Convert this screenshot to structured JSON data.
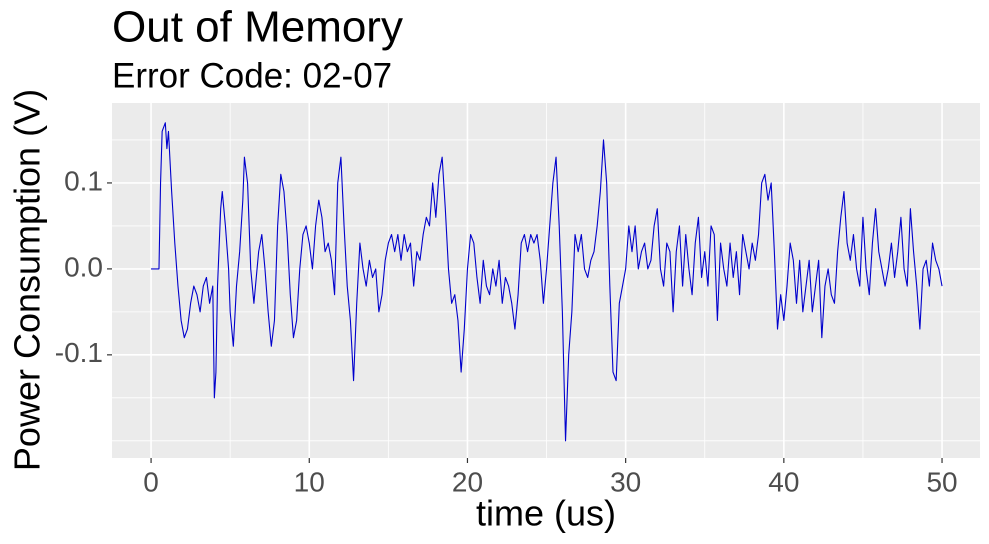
{
  "chart_data": {
    "type": "line",
    "title": "Out of Memory",
    "subtitle": "Error Code: 02-07",
    "xlabel": "time (us)",
    "ylabel": "Power Consumption (V)",
    "color": "#0000cd",
    "grid": true,
    "xlim": [
      -2.47,
      52.4
    ],
    "ylim": [
      -0.22,
      0.193
    ],
    "xticks": [
      0,
      10,
      20,
      30,
      40,
      50
    ],
    "yticks": [
      -0.1,
      {
        "value": 0,
        "label": "0.0"
      },
      0.1
    ],
    "xminor": [
      5,
      15,
      25,
      35,
      45
    ],
    "yminor": [
      -0.2,
      -0.15,
      -0.05,
      0.05,
      0.15
    ],
    "x": [
      0,
      0.5,
      0.6,
      0.7,
      0.9,
      1.0,
      1.1,
      1.3,
      1.5,
      1.7,
      1.9,
      2.1,
      2.3,
      2.5,
      2.7,
      2.9,
      3.1,
      3.3,
      3.5,
      3.7,
      3.9,
      4.0,
      4.1,
      4.2,
      4.4,
      4.5,
      4.7,
      4.9,
      5.0,
      5.2,
      5.4,
      5.6,
      5.8,
      5.9,
      6.1,
      6.3,
      6.5,
      6.8,
      7.0,
      7.2,
      7.4,
      7.6,
      7.8,
      8.0,
      8.2,
      8.4,
      8.6,
      8.8,
      9.0,
      9.2,
      9.4,
      9.6,
      9.8,
      10.0,
      10.2,
      10.4,
      10.6,
      10.8,
      11.0,
      11.2,
      11.4,
      11.6,
      11.8,
      12.0,
      12.2,
      12.4,
      12.6,
      12.8,
      13.0,
      13.2,
      13.4,
      13.6,
      13.8,
      14.0,
      14.2,
      14.4,
      14.6,
      14.8,
      15.0,
      15.2,
      15.4,
      15.6,
      15.8,
      16.0,
      16.2,
      16.4,
      16.6,
      16.8,
      17.0,
      17.2,
      17.4,
      17.6,
      17.8,
      18.0,
      18.2,
      18.4,
      18.6,
      18.8,
      19.0,
      19.2,
      19.4,
      19.6,
      19.8,
      20.0,
      20.2,
      20.4,
      20.6,
      20.8,
      21.0,
      21.2,
      21.4,
      21.6,
      21.8,
      22.0,
      22.2,
      22.4,
      22.6,
      22.8,
      23.0,
      23.2,
      23.4,
      23.6,
      23.8,
      24.0,
      24.2,
      24.4,
      24.6,
      24.8,
      25.0,
      25.2,
      25.4,
      25.6,
      25.8,
      26.0,
      26.2,
      26.4,
      26.6,
      26.8,
      27.0,
      27.2,
      27.4,
      27.6,
      27.8,
      28.0,
      28.2,
      28.4,
      28.6,
      28.8,
      29.0,
      29.2,
      29.4,
      29.6,
      29.8,
      30.0,
      30.2,
      30.4,
      30.6,
      30.8,
      31.0,
      31.2,
      31.4,
      31.6,
      31.8,
      32.0,
      32.2,
      32.4,
      32.6,
      32.8,
      33.0,
      33.2,
      33.4,
      33.6,
      33.8,
      34.0,
      34.2,
      34.4,
      34.6,
      34.8,
      35.0,
      35.2,
      35.4,
      35.6,
      35.8,
      36.0,
      36.2,
      36.4,
      36.6,
      36.8,
      37.0,
      37.2,
      37.4,
      37.6,
      37.8,
      38.0,
      38.2,
      38.4,
      38.6,
      38.8,
      39.0,
      39.2,
      39.4,
      39.6,
      39.8,
      40.0,
      40.2,
      40.4,
      40.6,
      40.8,
      41.0,
      41.2,
      41.4,
      41.6,
      41.8,
      42.0,
      42.2,
      42.4,
      42.6,
      42.8,
      43.0,
      43.2,
      43.4,
      43.6,
      43.8,
      44.0,
      44.2,
      44.4,
      44.6,
      44.8,
      45.0,
      45.2,
      45.4,
      45.6,
      45.8,
      46.0,
      46.2,
      46.4,
      46.6,
      46.8,
      47.0,
      47.2,
      47.4,
      47.6,
      47.8,
      48.0,
      48.2,
      48.4,
      48.6,
      48.8,
      49.0,
      49.2,
      49.4,
      49.6,
      49.8,
      50.0
    ],
    "values": [
      0,
      0,
      0.1,
      0.16,
      0.17,
      0.14,
      0.16,
      0.09,
      0.03,
      -0.02,
      -0.06,
      -0.08,
      -0.07,
      -0.04,
      -0.02,
      -0.03,
      -0.05,
      -0.02,
      -0.01,
      -0.04,
      -0.02,
      -0.15,
      -0.12,
      -0.02,
      0.07,
      0.09,
      0.05,
      0,
      -0.05,
      -0.09,
      -0.02,
      0.02,
      0.08,
      0.13,
      0.1,
      0,
      -0.04,
      0.02,
      0.04,
      0,
      -0.05,
      -0.09,
      -0.06,
      0.05,
      0.11,
      0.09,
      0.04,
      -0.03,
      -0.08,
      -0.06,
      0,
      0.04,
      0.05,
      0.03,
      0,
      0.05,
      0.08,
      0.06,
      0.02,
      0.03,
      0.01,
      -0.03,
      0.1,
      0.13,
      0.05,
      -0.02,
      -0.06,
      -0.13,
      -0.04,
      0.03,
      0,
      -0.02,
      0.01,
      -0.01,
      0,
      -0.05,
      -0.03,
      0.01,
      0.03,
      0.04,
      0.02,
      0.04,
      0.01,
      0.04,
      0.02,
      0.03,
      -0.02,
      0.02,
      0.01,
      0.04,
      0.06,
      0.05,
      0.1,
      0.06,
      0.11,
      0.13,
      0.07,
      0,
      -0.04,
      -0.03,
      -0.06,
      -0.12,
      -0.07,
      0,
      0.04,
      0.03,
      -0.01,
      -0.04,
      0.01,
      -0.02,
      -0.03,
      0,
      -0.02,
      0.01,
      -0.04,
      -0.01,
      -0.02,
      -0.04,
      -0.07,
      -0.03,
      0.03,
      0.04,
      0.02,
      0.04,
      0.03,
      0.04,
      0.01,
      -0.04,
      0,
      0.05,
      0.1,
      0.13,
      0.05,
      -0.05,
      -0.2,
      -0.1,
      -0.05,
      0.04,
      0.02,
      0.04,
      0,
      -0.01,
      0.01,
      0.02,
      0.05,
      0.09,
      0.15,
      0.1,
      -0.02,
      -0.12,
      -0.13,
      -0.04,
      -0.02,
      0,
      0.05,
      0.02,
      0.05,
      0,
      0.02,
      0.03,
      0,
      0.01,
      0.05,
      0.07,
      0,
      -0.02,
      0.03,
      0.02,
      -0.05,
      0.02,
      0.05,
      -0.02,
      0.04,
      0,
      -0.03,
      0.03,
      0.06,
      -0.01,
      0.02,
      -0.02,
      0.05,
      0.04,
      -0.06,
      0.03,
      0,
      -0.02,
      0.03,
      -0.01,
      0.02,
      -0.03,
      0.04,
      0.02,
      0,
      0.03,
      0.01,
      0.04,
      0.1,
      0.11,
      0.08,
      0.1,
      0.02,
      -0.07,
      -0.03,
      -0.06,
      -0.02,
      0.03,
      0.01,
      -0.04,
      0.01,
      -0.05,
      -0.02,
      0.01,
      -0.05,
      -0.02,
      0.01,
      -0.08,
      -0.02,
      0,
      -0.03,
      -0.04,
      0.02,
      0.06,
      0.09,
      0.03,
      0.01,
      0.04,
      0,
      -0.02,
      0.06,
      0,
      -0.03,
      0.03,
      0.07,
      0.02,
      0,
      -0.02,
      0,
      0.03,
      -0.01,
      0.02,
      0.06,
      0,
      -0.02,
      0.07,
      0.02,
      -0.02,
      -0.07,
      0,
      0.01,
      -0.02,
      0.03,
      0.01,
      0,
      -0.02
    ]
  }
}
